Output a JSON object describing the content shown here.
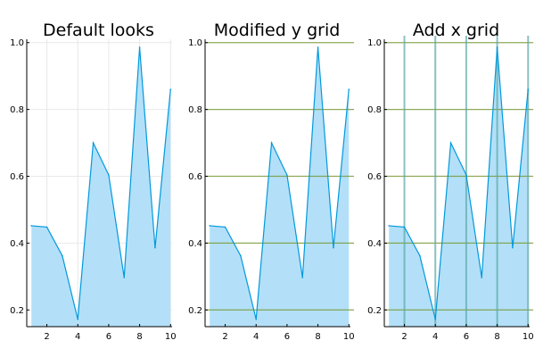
{
  "chart_data": [
    {
      "type": "area",
      "title": "Default looks",
      "x": [
        1,
        2,
        3,
        4,
        5,
        6,
        7,
        8,
        9,
        10
      ],
      "series": [
        {
          "values": [
            0.452,
            0.448,
            0.362,
            0.172,
            0.7,
            0.604,
            0.297,
            0.986,
            0.386,
            0.86
          ]
        }
      ],
      "xticks": [
        "2",
        "4",
        "6",
        "8",
        "10"
      ],
      "yticks": [
        "0.2",
        "0.4",
        "0.6",
        "0.8",
        "1.0"
      ],
      "xlim": [
        0.7,
        10.1
      ],
      "ylim": [
        0.15,
        1.01
      ],
      "grid": {
        "y": "default",
        "x": "default"
      },
      "legend": "none",
      "colors": {
        "line": "#0099dd",
        "fill": "#b3e0f8",
        "grid": "#e8e8e8",
        "axis": "#000000"
      }
    },
    {
      "type": "area",
      "title": "Modified y grid",
      "x": [
        1,
        2,
        3,
        4,
        5,
        6,
        7,
        8,
        9,
        10
      ],
      "series": [
        {
          "values": [
            0.452,
            0.448,
            0.362,
            0.172,
            0.7,
            0.604,
            0.297,
            0.986,
            0.386,
            0.86
          ]
        }
      ],
      "xticks": [
        "2",
        "4",
        "6",
        "8",
        "10"
      ],
      "yticks": [
        "0.2",
        "0.4",
        "0.6",
        "0.8",
        "1.0"
      ],
      "xlim": [
        0.7,
        10.1
      ],
      "ylim": [
        0.15,
        1.01
      ],
      "grid": {
        "y": "green",
        "x": "none"
      },
      "legend": "none",
      "colors": {
        "line": "#0099dd",
        "fill": "#b3e0f8",
        "ygrid": "#7a9a3a",
        "axis": "#000000"
      }
    },
    {
      "type": "area",
      "title": "Add x grid",
      "x": [
        1,
        2,
        3,
        4,
        5,
        6,
        7,
        8,
        9,
        10
      ],
      "series": [
        {
          "values": [
            0.452,
            0.448,
            0.362,
            0.172,
            0.7,
            0.604,
            0.297,
            0.986,
            0.386,
            0.86
          ]
        }
      ],
      "xticks": [
        "2",
        "4",
        "6",
        "8",
        "10"
      ],
      "yticks": [
        "0.2",
        "0.4",
        "0.6",
        "0.8",
        "1.0"
      ],
      "xlim": [
        0.7,
        10.1
      ],
      "ylim": [
        0.15,
        1.01
      ],
      "grid": {
        "y": "green",
        "x": "teal-thick"
      },
      "legend": "none",
      "colors": {
        "line": "#0099dd",
        "fill": "#b3e0f8",
        "ygrid": "#7a9a3a",
        "xgrid": "#5aa6a6",
        "axis": "#000000"
      }
    }
  ]
}
